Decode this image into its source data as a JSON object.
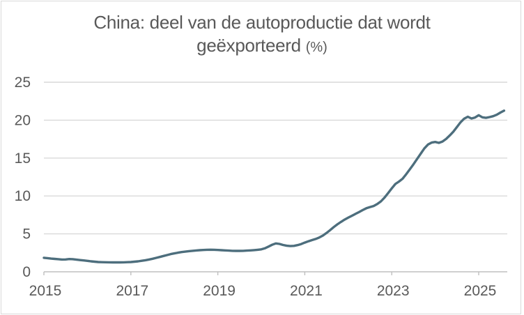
{
  "title": {
    "line1": "China: deel van de autoproductie dat wordt",
    "line2_main": "geëxporteerd",
    "line2_suffix": "(%)"
  },
  "colors": {
    "line": "#4d6e7d",
    "gridline": "#d9d9d9",
    "axis": "#bfbfbf",
    "tick": "#bfbfbf",
    "text": "#595959",
    "border": "#d9d9d9",
    "background": "#ffffff"
  },
  "chart_data": {
    "type": "line",
    "title": "China: deel van de autoproductie dat wordt geëxporteerd (%)",
    "xlabel": "",
    "ylabel": "",
    "xlim": [
      2015,
      2025.75
    ],
    "ylim": [
      0,
      25
    ],
    "x_ticks": [
      2015,
      2017,
      2019,
      2021,
      2023,
      2025
    ],
    "y_ticks": [
      0,
      5,
      10,
      15,
      20,
      25
    ],
    "grid": "horizontal",
    "legend": "none",
    "series": [
      {
        "x_start": 2015.0,
        "x_step_years": 0.0833333,
        "values": [
          1.85,
          1.8,
          1.74,
          1.7,
          1.66,
          1.62,
          1.63,
          1.68,
          1.66,
          1.6,
          1.54,
          1.5,
          1.44,
          1.38,
          1.33,
          1.29,
          1.27,
          1.26,
          1.25,
          1.24,
          1.24,
          1.24,
          1.25,
          1.27,
          1.29,
          1.33,
          1.38,
          1.45,
          1.53,
          1.62,
          1.72,
          1.84,
          1.96,
          2.09,
          2.21,
          2.33,
          2.43,
          2.52,
          2.6,
          2.66,
          2.72,
          2.77,
          2.81,
          2.85,
          2.88,
          2.9,
          2.91,
          2.9,
          2.88,
          2.85,
          2.82,
          2.79,
          2.77,
          2.76,
          2.76,
          2.77,
          2.79,
          2.82,
          2.86,
          2.9,
          2.96,
          3.1,
          3.33,
          3.57,
          3.74,
          3.68,
          3.54,
          3.44,
          3.39,
          3.42,
          3.52,
          3.66,
          3.85,
          4.03,
          4.18,
          4.33,
          4.52,
          4.78,
          5.12,
          5.5,
          5.9,
          6.26,
          6.58,
          6.88,
          7.14,
          7.39,
          7.64,
          7.89,
          8.14,
          8.38,
          8.54,
          8.68,
          8.93,
          9.28,
          9.78,
          10.38,
          11.0,
          11.58,
          11.9,
          12.28,
          12.88,
          13.52,
          14.18,
          14.88,
          15.58,
          16.28,
          16.78,
          17.04,
          17.12,
          17.0,
          17.18,
          17.52,
          17.98,
          18.48,
          19.1,
          19.72,
          20.2,
          20.45,
          20.22,
          20.35,
          20.65,
          20.38,
          20.3,
          20.4,
          20.52,
          20.72,
          21.0,
          21.25
        ]
      }
    ]
  }
}
